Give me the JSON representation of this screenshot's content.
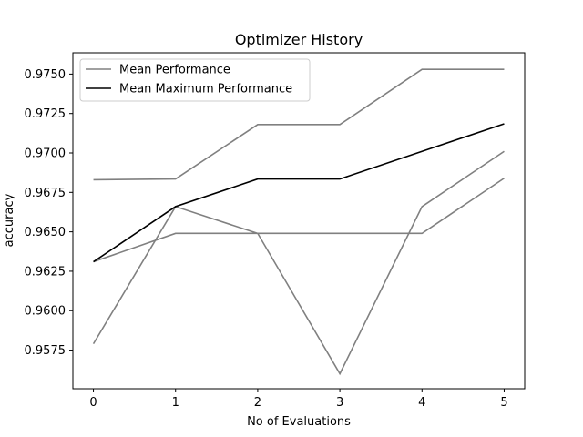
{
  "chart_data": {
    "type": "line",
    "title": "Optimizer History",
    "xlabel": "No of Evaluations",
    "ylabel": "accuracy",
    "x": [
      0,
      1,
      2,
      3,
      4,
      5
    ],
    "xticks": [
      0,
      1,
      2,
      3,
      4,
      5
    ],
    "xlim": [
      -0.25,
      5.25
    ],
    "yticks": [
      0.9575,
      0.96,
      0.9625,
      0.965,
      0.9675,
      0.97,
      0.9725,
      0.975
    ],
    "ytick_labels": [
      "0.9575",
      "0.9600",
      "0.9625",
      "0.9650",
      "0.9675",
      "0.9700",
      "0.9725",
      "0.9750"
    ],
    "ylim": [
      0.95505,
      0.97635
    ],
    "grid": false,
    "legend_position": "top-left",
    "legend": [
      {
        "label": "Mean Performance",
        "color": "#808080"
      },
      {
        "label": "Mean Maximum Performance",
        "color": "#000000"
      }
    ],
    "series": [
      {
        "values": [
          0.9683,
          0.96835,
          0.9718,
          0.9718,
          0.9753,
          0.9753
        ],
        "color": "#808080"
      },
      {
        "values": [
          0.9579,
          0.9666,
          0.9649,
          0.956,
          0.9666,
          0.9701
        ],
        "color": "#808080"
      },
      {
        "values": [
          0.9631,
          0.9649,
          0.9649,
          0.9649,
          0.9649,
          0.9684
        ],
        "color": "#808080"
      },
      {
        "values": [
          0.9631,
          0.9666,
          0.96835,
          0.96835,
          0.9701,
          0.97185
        ],
        "color": "#000000"
      }
    ]
  }
}
